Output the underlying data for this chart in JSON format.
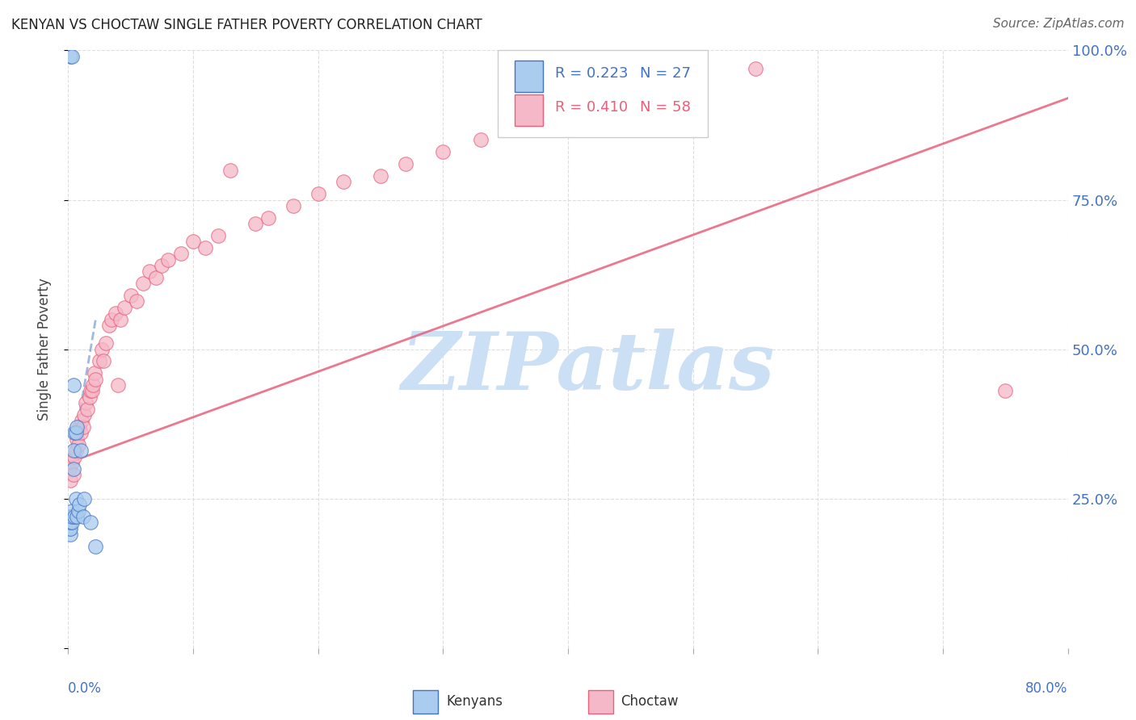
{
  "title": "KENYAN VS CHOCTAW SINGLE FATHER POVERTY CORRELATION CHART",
  "source": "Source: ZipAtlas.com",
  "ylabel": "Single Father Poverty",
  "right_yticks": [
    "100.0%",
    "75.0%",
    "50.0%",
    "25.0%"
  ],
  "right_ytick_vals": [
    1.0,
    0.75,
    0.5,
    0.25
  ],
  "kenyan_color": "#aaccee",
  "choctaw_color": "#f5b8c8",
  "kenyan_line_color": "#4472c4",
  "choctaw_line_color": "#e8607a",
  "watermark_text": "ZIPatlas",
  "watermark_color": "#cce0f5",
  "xlim": [
    0.0,
    0.8
  ],
  "ylim": [
    0.0,
    1.0
  ],
  "background": "#ffffff",
  "grid_color": "#dddddd",
  "legend_kenyan_R": "R = 0.223",
  "legend_kenyan_N": "N = 27",
  "legend_choctaw_R": "R = 0.410",
  "legend_choctaw_N": "N = 58",
  "kenyan_x": [
    0.001,
    0.001,
    0.001,
    0.002,
    0.002,
    0.002,
    0.002,
    0.003,
    0.003,
    0.003,
    0.003,
    0.004,
    0.004,
    0.004,
    0.005,
    0.005,
    0.006,
    0.006,
    0.007,
    0.007,
    0.008,
    0.009,
    0.01,
    0.012,
    0.013,
    0.018,
    0.022
  ],
  "kenyan_y": [
    0.2,
    0.21,
    0.22,
    0.19,
    0.2,
    0.21,
    0.99,
    0.21,
    0.22,
    0.23,
    0.99,
    0.3,
    0.33,
    0.44,
    0.22,
    0.36,
    0.25,
    0.36,
    0.22,
    0.37,
    0.23,
    0.24,
    0.33,
    0.22,
    0.25,
    0.21,
    0.17
  ],
  "choctaw_x": [
    0.001,
    0.002,
    0.003,
    0.004,
    0.005,
    0.006,
    0.007,
    0.008,
    0.009,
    0.01,
    0.011,
    0.012,
    0.013,
    0.014,
    0.015,
    0.017,
    0.018,
    0.019,
    0.02,
    0.021,
    0.022,
    0.025,
    0.027,
    0.028,
    0.03,
    0.033,
    0.035,
    0.038,
    0.04,
    0.042,
    0.045,
    0.05,
    0.055,
    0.06,
    0.065,
    0.07,
    0.075,
    0.08,
    0.09,
    0.1,
    0.11,
    0.12,
    0.13,
    0.15,
    0.16,
    0.18,
    0.2,
    0.22,
    0.25,
    0.27,
    0.3,
    0.33,
    0.35,
    0.38,
    0.4,
    0.45,
    0.55,
    0.75
  ],
  "choctaw_y": [
    0.3,
    0.28,
    0.31,
    0.29,
    0.32,
    0.33,
    0.35,
    0.34,
    0.37,
    0.36,
    0.38,
    0.37,
    0.39,
    0.41,
    0.4,
    0.42,
    0.43,
    0.43,
    0.44,
    0.46,
    0.45,
    0.48,
    0.5,
    0.48,
    0.51,
    0.54,
    0.55,
    0.56,
    0.44,
    0.55,
    0.57,
    0.59,
    0.58,
    0.61,
    0.63,
    0.62,
    0.64,
    0.65,
    0.66,
    0.68,
    0.67,
    0.69,
    0.8,
    0.71,
    0.72,
    0.74,
    0.76,
    0.78,
    0.79,
    0.81,
    0.83,
    0.85,
    0.87,
    0.89,
    0.91,
    0.94,
    0.97,
    0.43
  ],
  "kenyan_line_x": [
    0.0,
    0.022
  ],
  "kenyan_line_y": [
    0.28,
    0.55
  ],
  "choctaw_line_x": [
    0.0,
    0.8
  ],
  "choctaw_line_y": [
    0.31,
    0.92
  ]
}
